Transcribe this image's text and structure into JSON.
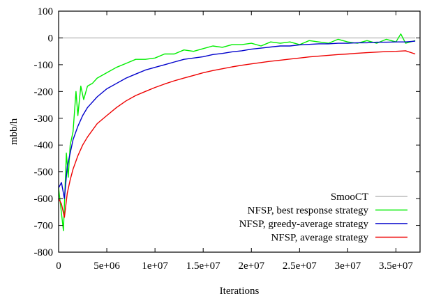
{
  "chart_data": {
    "type": "line",
    "title": "",
    "xlabel": "Iterations",
    "ylabel": "mbb/h",
    "xlim": [
      0,
      37500000
    ],
    "ylim": [
      -800,
      100
    ],
    "xticks": [
      0,
      5000000,
      10000000,
      15000000,
      20000000,
      25000000,
      30000000,
      35000000
    ],
    "xtick_labels": [
      "0",
      "5e+06",
      "1e+07",
      "1.5e+07",
      "2e+07",
      "2.5e+07",
      "3e+07",
      "3.5e+07"
    ],
    "yticks": [
      100,
      0,
      -100,
      -200,
      -300,
      -400,
      -500,
      -600,
      -700,
      -800
    ],
    "ytick_labels": [
      "100",
      "0",
      "-100",
      "-200",
      "-300",
      "-400",
      "-500",
      "-600",
      "-700",
      "-800"
    ],
    "legend_position": "bottom-right",
    "grid": false,
    "series": [
      {
        "name": "SmooCT",
        "color": "#bbbbbb",
        "x": [
          0,
          37000000
        ],
        "y": [
          0,
          0
        ]
      },
      {
        "name": "NFSP, best response strategy",
        "color": "#00ee00",
        "x": [
          0,
          500000,
          800000,
          1000000,
          1200000,
          1500000,
          1800000,
          2000000,
          2300000,
          2600000,
          3000000,
          3500000,
          4000000,
          5000000,
          6000000,
          7000000,
          8000000,
          9000000,
          10000000,
          11000000,
          12000000,
          13000000,
          14000000,
          15000000,
          16000000,
          17000000,
          18000000,
          19000000,
          20000000,
          21000000,
          22000000,
          23000000,
          24000000,
          25000000,
          26000000,
          27000000,
          28000000,
          29000000,
          30000000,
          31000000,
          32000000,
          33000000,
          34000000,
          35000000,
          35500000,
          36000000,
          36500000,
          37000000
        ],
        "y": [
          -560,
          -720,
          -430,
          -520,
          -400,
          -350,
          -200,
          -290,
          -180,
          -230,
          -180,
          -170,
          -150,
          -130,
          -110,
          -95,
          -80,
          -80,
          -75,
          -60,
          -60,
          -45,
          -50,
          -40,
          -30,
          -35,
          -25,
          -25,
          -20,
          -30,
          -15,
          -20,
          -15,
          -25,
          -10,
          -15,
          -20,
          -5,
          -15,
          -20,
          -10,
          -20,
          -5,
          -15,
          15,
          -20,
          -15,
          -10
        ]
      },
      {
        "name": "NFSP, greedy-average strategy",
        "color": "#0000cc",
        "x": [
          0,
          300000,
          600000,
          900000,
          1200000,
          1500000,
          2000000,
          2500000,
          3000000,
          4000000,
          5000000,
          6000000,
          7000000,
          8000000,
          9000000,
          10000000,
          11000000,
          12000000,
          13000000,
          14000000,
          15000000,
          16000000,
          17000000,
          18000000,
          19000000,
          20000000,
          21000000,
          22000000,
          23000000,
          24000000,
          25000000,
          26000000,
          27000000,
          28000000,
          29000000,
          30000000,
          31000000,
          32000000,
          33000000,
          34000000,
          35000000,
          36000000,
          37000000
        ],
        "y": [
          -560,
          -540,
          -600,
          -480,
          -430,
          -380,
          -330,
          -290,
          -260,
          -220,
          -190,
          -170,
          -150,
          -135,
          -120,
          -110,
          -100,
          -90,
          -80,
          -75,
          -70,
          -62,
          -58,
          -52,
          -48,
          -42,
          -38,
          -34,
          -30,
          -30,
          -26,
          -24,
          -22,
          -22,
          -20,
          -20,
          -18,
          -18,
          -16,
          -16,
          -15,
          -15,
          -12
        ]
      },
      {
        "name": "NFSP, average strategy",
        "color": "#ee0000",
        "x": [
          0,
          300000,
          600000,
          900000,
          1200000,
          1500000,
          2000000,
          2500000,
          3000000,
          4000000,
          5000000,
          6000000,
          7000000,
          8000000,
          9000000,
          10000000,
          11000000,
          12000000,
          13000000,
          14000000,
          15000000,
          16000000,
          17000000,
          18000000,
          19000000,
          20000000,
          21000000,
          22000000,
          23000000,
          24000000,
          25000000,
          26000000,
          27000000,
          28000000,
          29000000,
          30000000,
          31000000,
          32000000,
          33000000,
          34000000,
          35000000,
          36000000,
          37000000
        ],
        "y": [
          -600,
          -620,
          -670,
          -580,
          -530,
          -490,
          -440,
          -400,
          -370,
          -320,
          -290,
          -260,
          -235,
          -215,
          -200,
          -185,
          -172,
          -160,
          -150,
          -140,
          -130,
          -122,
          -115,
          -108,
          -102,
          -97,
          -92,
          -87,
          -83,
          -79,
          -75,
          -71,
          -68,
          -65,
          -62,
          -60,
          -57,
          -55,
          -53,
          -51,
          -50,
          -48,
          -60
        ]
      }
    ]
  }
}
